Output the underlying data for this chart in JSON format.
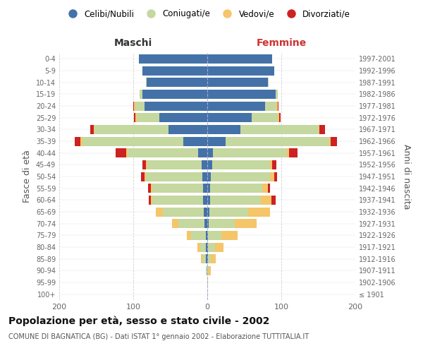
{
  "age_groups": [
    "100+",
    "95-99",
    "90-94",
    "85-89",
    "80-84",
    "75-79",
    "70-74",
    "65-69",
    "60-64",
    "55-59",
    "50-54",
    "45-49",
    "40-44",
    "35-39",
    "30-34",
    "25-29",
    "20-24",
    "15-19",
    "10-14",
    "5-9",
    "0-4"
  ],
  "birth_years": [
    "≤ 1901",
    "1902-1906",
    "1907-1911",
    "1912-1916",
    "1917-1921",
    "1922-1926",
    "1927-1931",
    "1932-1936",
    "1937-1941",
    "1942-1946",
    "1947-1951",
    "1952-1956",
    "1957-1961",
    "1962-1966",
    "1967-1971",
    "1972-1976",
    "1977-1981",
    "1982-1986",
    "1987-1991",
    "1992-1996",
    "1997-2001"
  ],
  "males_celibi": [
    0,
    0,
    0,
    2,
    2,
    2,
    4,
    5,
    6,
    6,
    7,
    8,
    12,
    32,
    52,
    65,
    85,
    88,
    82,
    88,
    92
  ],
  "males_coniugati": [
    0,
    0,
    2,
    5,
    8,
    20,
    35,
    55,
    68,
    68,
    76,
    73,
    96,
    137,
    100,
    30,
    12,
    3,
    1,
    0,
    0
  ],
  "males_vedovi": [
    0,
    0,
    0,
    2,
    3,
    6,
    9,
    10,
    2,
    2,
    2,
    2,
    2,
    2,
    1,
    2,
    2,
    0,
    0,
    0,
    0
  ],
  "males_divorziati": [
    0,
    0,
    0,
    0,
    0,
    0,
    0,
    0,
    3,
    4,
    5,
    5,
    14,
    8,
    5,
    2,
    1,
    0,
    0,
    0,
    0
  ],
  "females_nubili": [
    0,
    0,
    0,
    1,
    1,
    1,
    2,
    3,
    4,
    4,
    5,
    7,
    8,
    25,
    45,
    60,
    78,
    92,
    82,
    90,
    88
  ],
  "females_coniugate": [
    0,
    0,
    2,
    4,
    9,
    18,
    35,
    52,
    68,
    70,
    80,
    78,
    100,
    140,
    105,
    35,
    15,
    3,
    1,
    0,
    0
  ],
  "females_vedove": [
    0,
    1,
    3,
    6,
    12,
    22,
    30,
    30,
    15,
    8,
    5,
    3,
    2,
    2,
    1,
    2,
    2,
    0,
    0,
    0,
    0
  ],
  "females_divorziate": [
    0,
    0,
    0,
    0,
    0,
    0,
    0,
    0,
    5,
    3,
    4,
    5,
    12,
    8,
    8,
    2,
    1,
    0,
    0,
    0,
    0
  ],
  "colors": {
    "celibi_nubili": "#4472a8",
    "coniugati_e": "#c5d8a0",
    "vedovi_e": "#f5c56a",
    "divorziati_e": "#cc2222"
  },
  "xlim": 200,
  "title": "Popolazione per età, sesso e stato civile - 2002",
  "subtitle": "COMUNE DI BAGNATICA (BG) - Dati ISTAT 1° gennaio 2002 - Elaborazione TUTTITALIA.IT",
  "ylabel_left": "Fasce di età",
  "ylabel_right": "Anni di nascita",
  "label_maschi": "Maschi",
  "label_femmine": "Femmine",
  "legend_labels": [
    "Celibi/Nubili",
    "Coniugati/e",
    "Vedovi/e",
    "Divorziati/e"
  ],
  "bg_color": "#ffffff",
  "grid_color": "#cccccc"
}
